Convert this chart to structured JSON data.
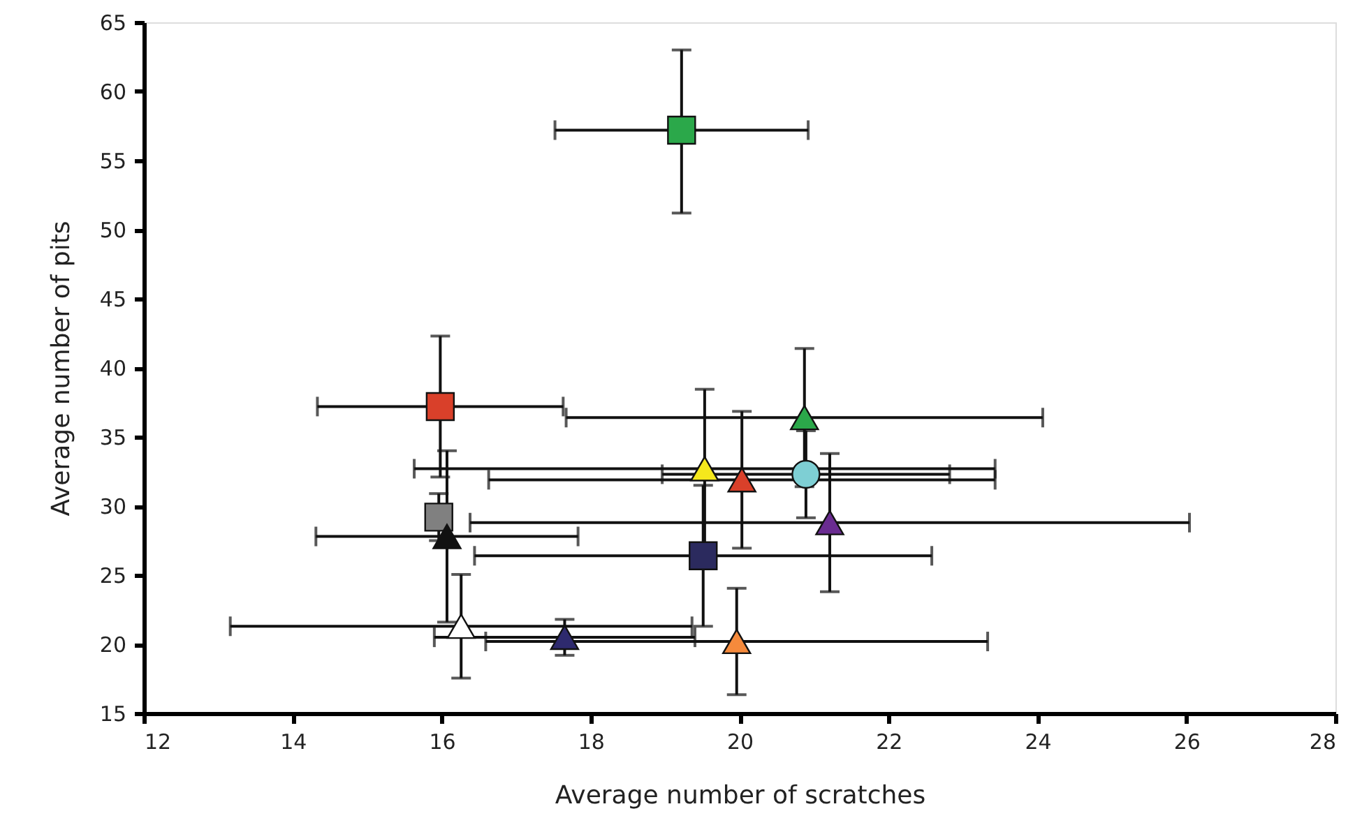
{
  "chart_data": {
    "type": "scatter",
    "xlabel": "Average number of scratches",
    "ylabel": "Average number of pits",
    "xlim": [
      12,
      28
    ],
    "xticks": [
      12,
      14,
      16,
      18,
      20,
      22,
      24,
      26,
      28
    ],
    "ylim": [
      15,
      65
    ],
    "yticks": [
      15,
      20,
      25,
      30,
      35,
      40,
      45,
      50,
      55,
      60,
      65
    ],
    "grid": false,
    "series": [
      {
        "marker": "square",
        "color": "#2ba84a",
        "x": [
          19.22
        ],
        "values": [
          57.2
        ],
        "errors": [
          [
            51.2,
            63.0
          ]
        ],
        "xerrors": [
          1.7
        ]
      },
      {
        "marker": "square",
        "color": "#d9402a",
        "x": [
          15.98
        ],
        "values": [
          37.2
        ],
        "errors": [
          5.1
        ],
        "xerrors": [
          1.65
        ]
      },
      {
        "marker": "square",
        "color": "#808080",
        "x": [
          15.96
        ],
        "values": [
          29.2
        ],
        "errors": [
          1.7
        ],
        "xerrors": [
          null
        ]
      },
      {
        "marker": "triangle",
        "color": "#111111",
        "x": [
          16.07
        ],
        "values": [
          27.8
        ],
        "errors": [
          6.2
        ],
        "xerrors": [
          1.76
        ]
      },
      {
        "marker": "triangle",
        "color": "#f5e81c",
        "x": [
          19.53
        ],
        "values": [
          32.7
        ],
        "errors": [
          5.75
        ],
        "xerrors": [
          3.9
        ]
      },
      {
        "marker": "triangle",
        "color": "#d9402a",
        "x": [
          20.03
        ],
        "values": [
          31.9
        ],
        "errors": [
          4.95
        ],
        "xerrors": [
          3.4
        ]
      },
      {
        "marker": "triangle",
        "color": "#2ba84a",
        "x": [
          20.87
        ],
        "values": [
          36.4
        ],
        "errors": [
          5.0
        ],
        "xerrors": [
          3.2
        ]
      },
      {
        "marker": "circle",
        "color": "#7ecfd4",
        "x": [
          20.89
        ],
        "values": [
          32.3
        ],
        "errors": [
          3.15
        ],
        "xerrors": [
          1.93
        ]
      },
      {
        "marker": "triangle",
        "color": "#6a2c91",
        "x": [
          21.21
        ],
        "values": [
          28.8
        ],
        "errors": [
          5.0
        ],
        "xerrors": [
          4.83
        ]
      },
      {
        "marker": "square",
        "color": "#2b2a5e",
        "x": [
          19.51
        ],
        "values": [
          26.4
        ],
        "errors": [
          5.1
        ],
        "xerrors": [
          3.07
        ]
      },
      {
        "marker": "triangle",
        "color": "#ffffff",
        "x": [
          16.26
        ],
        "values": [
          21.3
        ],
        "errors": [
          3.75
        ],
        "xerrors": [
          3.1
        ]
      },
      {
        "marker": "triangle",
        "color": "#2e2a6e",
        "x": [
          17.65
        ],
        "values": [
          20.5
        ],
        "errors": [
          1.3
        ],
        "xerrors": [
          1.75
        ]
      },
      {
        "marker": "triangle",
        "color": "#f58a3c",
        "x": [
          19.96
        ],
        "values": [
          20.2
        ],
        "errors": [
          3.85
        ],
        "xerrors": [
          3.37
        ]
      }
    ]
  }
}
